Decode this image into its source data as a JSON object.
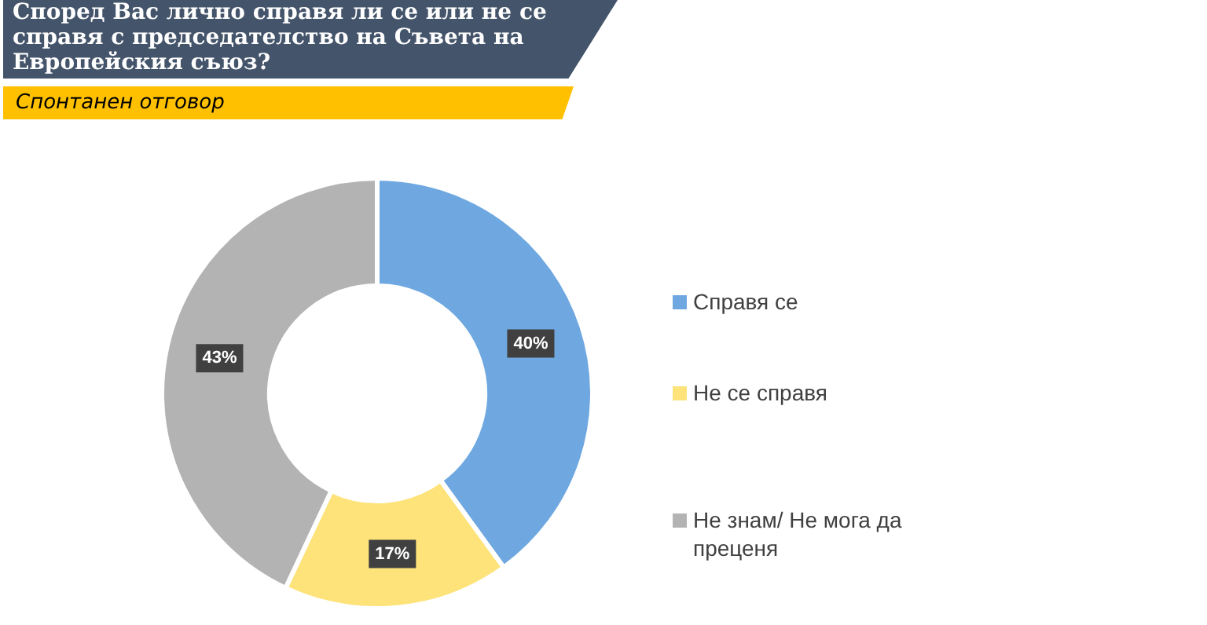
{
  "chart_data": {
    "type": "donut",
    "title": "Според Вас лично справя ли се или не се справя с председателство на Съвета на Европейския съюз?",
    "subtitle": "Спонтанен отговор",
    "categories": [
      "Справя се",
      "Не се справя",
      "Не знам/ Не мога да преценя"
    ],
    "values": [
      40,
      17,
      43
    ],
    "colors": [
      "#6fa8e0",
      "#fde37a",
      "#b3b3b3"
    ],
    "value_labels": [
      "40%",
      "17%",
      "43%"
    ],
    "legend": "right"
  }
}
